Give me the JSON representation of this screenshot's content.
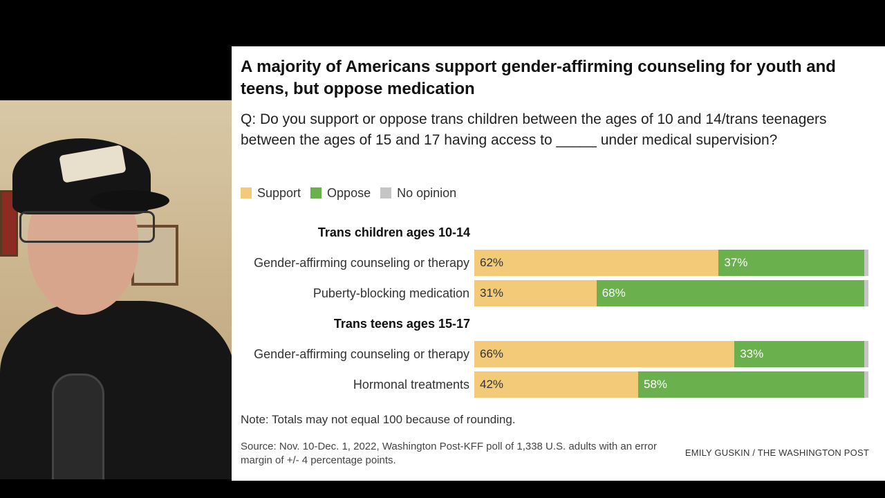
{
  "colors": {
    "support": "#f3ca78",
    "oppose": "#6ab04c",
    "no_opinion": "#c5c5c5"
  },
  "chart_data": {
    "type": "bar",
    "orientation": "horizontal",
    "stacked": true,
    "title": "A majority of Americans support gender-affirming counseling for youth and teens, but oppose medication",
    "subtitle": "Q: Do you support or oppose trans children between the ages of 10 and 14/trans teenagers between the ages of 15 and 17 having access to _____ under medical supervision?",
    "legend": [
      "Support",
      "Oppose",
      "No opinion"
    ],
    "legend_position": "top-left",
    "groups": [
      {
        "name": "Trans children ages 10-14",
        "rows": [
          {
            "label": "Gender-affirming counseling or therapy",
            "support": 62,
            "oppose": 37,
            "no_opinion": 1,
            "support_label": "62%",
            "oppose_label": "37%"
          },
          {
            "label": "Puberty-blocking medication",
            "support": 31,
            "oppose": 68,
            "no_opinion": 1,
            "support_label": "31%",
            "oppose_label": "68%"
          }
        ]
      },
      {
        "name": "Trans teens ages 15-17",
        "rows": [
          {
            "label": "Gender-affirming counseling or therapy",
            "support": 66,
            "oppose": 33,
            "no_opinion": 1,
            "support_label": "66%",
            "oppose_label": "33%"
          },
          {
            "label": "Hormonal treatments",
            "support": 42,
            "oppose": 58,
            "no_opinion": 1,
            "support_label": "42%",
            "oppose_label": "58%"
          }
        ]
      }
    ],
    "note": "Note: Totals may not equal 100 because of rounding.",
    "source": "Source: Nov. 10-Dec. 1, 2022, Washington Post-KFF poll of 1,338 U.S. adults with an error margin of +/- 4 percentage points.",
    "credit": "EMILY GUSKIN / THE WASHINGTON POST"
  }
}
